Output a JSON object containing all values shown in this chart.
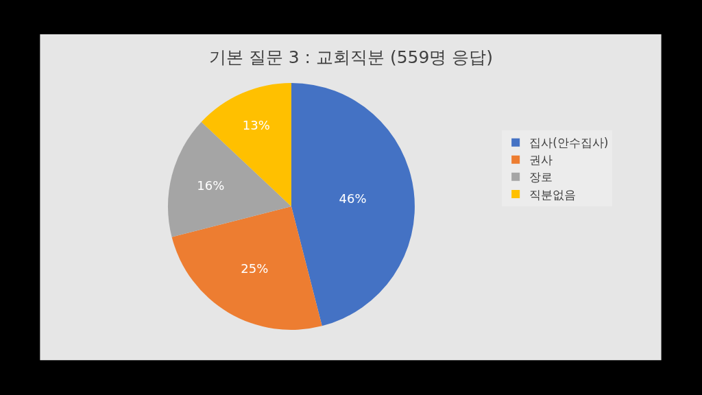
{
  "chart_data": {
    "type": "pie",
    "title": "기본 질문 3 : 교회직분 (559명 응답)",
    "categories": [
      "집사(안수집사)",
      "권사",
      "장로",
      "직분없음"
    ],
    "values": [
      46,
      25,
      16,
      13
    ],
    "colors": [
      "#4472c4",
      "#ed7d31",
      "#a5a5a5",
      "#ffc000"
    ],
    "value_labels": [
      "46%",
      "25%",
      "16%",
      "13%"
    ],
    "legend": "right"
  }
}
